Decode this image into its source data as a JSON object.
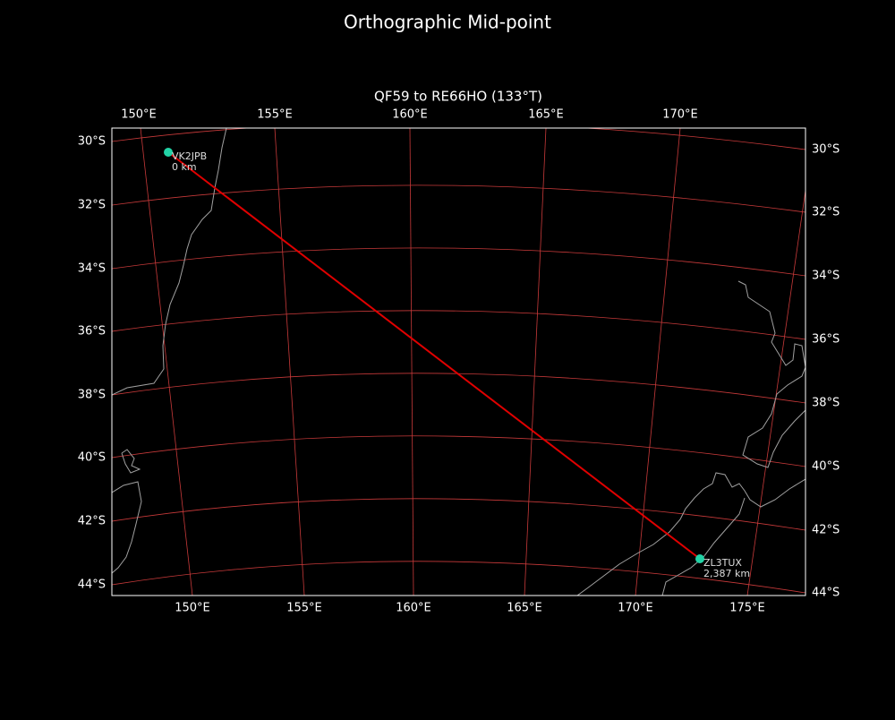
{
  "title": "Orthographic Mid-point",
  "subtitle": "QF59 to RE66HO (133°T)",
  "top_lon_labels": [
    "150°E",
    "155°E",
    "160°E",
    "165°E",
    "170°E"
  ],
  "bottom_lon_labels": [
    "150°E",
    "155°E",
    "160°E",
    "165°E",
    "170°E",
    "175°E"
  ],
  "left_lat_labels": [
    "30°S",
    "32°S",
    "34°S",
    "36°S",
    "38°S",
    "40°S",
    "42°S",
    "44°S"
  ],
  "right_lat_labels": [
    "30°S",
    "32°S",
    "34°S",
    "36°S",
    "38°S",
    "40°S",
    "42°S",
    "44°S"
  ],
  "stations": [
    {
      "call": "VK2JPB",
      "distance": "0 km"
    },
    {
      "call": "ZL3TUX",
      "distance": "2,387 km"
    }
  ]
}
